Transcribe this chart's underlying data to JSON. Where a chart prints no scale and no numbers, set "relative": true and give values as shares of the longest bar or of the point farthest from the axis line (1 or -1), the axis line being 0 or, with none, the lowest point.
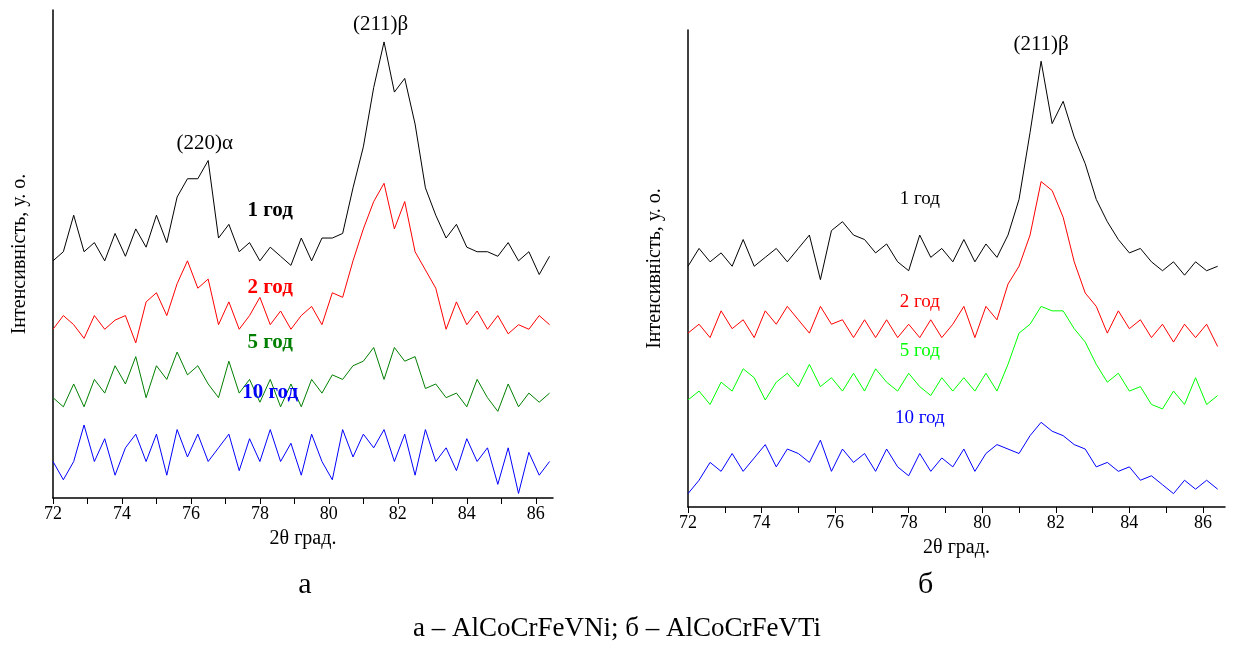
{
  "chart_data": [
    {
      "type": "line",
      "title": "а",
      "xlabel": "2θ град.",
      "ylabel": "Інтенсивність, у. о.",
      "relative": true,
      "marker": "none",
      "legend": false,
      "grid": false,
      "xlim": [
        72,
        86.5
      ],
      "xticks": [
        72,
        {
          "value": 73,
          "label": null
        },
        74,
        {
          "value": 75,
          "label": null
        },
        76,
        {
          "value": 77,
          "label": null
        },
        78,
        {
          "value": 79,
          "label": null
        },
        80,
        {
          "value": 81,
          "label": null
        },
        82,
        {
          "value": 83,
          "label": null
        },
        84,
        {
          "value": 85,
          "label": null
        },
        86
      ],
      "x": [
        72.0,
        72.3,
        72.6,
        72.9,
        73.2,
        73.5,
        73.8,
        74.1,
        74.4,
        74.7,
        75.0,
        75.3,
        75.6,
        75.9,
        76.2,
        76.5,
        76.8,
        77.1,
        77.4,
        77.7,
        78.0,
        78.3,
        78.6,
        78.9,
        79.2,
        79.5,
        79.8,
        80.1,
        80.4,
        80.7,
        81.0,
        81.3,
        81.6,
        81.9,
        82.2,
        82.5,
        82.8,
        83.1,
        83.4,
        83.7,
        84.0,
        84.3,
        84.6,
        84.9,
        85.2,
        85.5,
        85.8,
        86.1,
        86.4
      ],
      "series": [
        {
          "name": "1 год",
          "color": "#000000",
          "values": [
            0.52,
            0.54,
            0.62,
            0.54,
            0.56,
            0.52,
            0.58,
            0.53,
            0.59,
            0.55,
            0.62,
            0.56,
            0.66,
            0.7,
            0.7,
            0.74,
            0.57,
            0.6,
            0.54,
            0.56,
            0.52,
            0.55,
            0.53,
            0.51,
            0.57,
            0.52,
            0.57,
            0.57,
            0.58,
            0.68,
            0.77,
            0.9,
            1.0,
            0.89,
            0.92,
            0.82,
            0.68,
            0.62,
            0.57,
            0.6,
            0.55,
            0.54,
            0.54,
            0.53,
            0.56,
            0.52,
            0.54,
            0.49,
            0.53
          ]
        },
        {
          "name": "2 год",
          "color": "#ff0000",
          "values": [
            0.37,
            0.4,
            0.38,
            0.35,
            0.4,
            0.37,
            0.39,
            0.4,
            0.34,
            0.43,
            0.45,
            0.4,
            0.47,
            0.52,
            0.46,
            0.48,
            0.38,
            0.43,
            0.37,
            0.4,
            0.44,
            0.38,
            0.41,
            0.37,
            0.4,
            0.42,
            0.38,
            0.45,
            0.44,
            0.52,
            0.59,
            0.65,
            0.69,
            0.59,
            0.65,
            0.54,
            0.5,
            0.46,
            0.37,
            0.43,
            0.38,
            0.41,
            0.37,
            0.4,
            0.36,
            0.38,
            0.37,
            0.4,
            0.38
          ]
        },
        {
          "name": "5 год",
          "color": "#007f00",
          "values": [
            0.22,
            0.2,
            0.25,
            0.2,
            0.26,
            0.23,
            0.29,
            0.25,
            0.31,
            0.22,
            0.29,
            0.26,
            0.32,
            0.27,
            0.29,
            0.25,
            0.22,
            0.3,
            0.23,
            0.26,
            0.21,
            0.26,
            0.2,
            0.25,
            0.2,
            0.26,
            0.23,
            0.27,
            0.26,
            0.29,
            0.3,
            0.33,
            0.26,
            0.33,
            0.3,
            0.31,
            0.24,
            0.25,
            0.22,
            0.23,
            0.2,
            0.26,
            0.22,
            0.19,
            0.25,
            0.2,
            0.23,
            0.21,
            0.23
          ]
        },
        {
          "name": "10 год",
          "color": "#0000ff",
          "values": [
            0.08,
            0.04,
            0.08,
            0.16,
            0.08,
            0.13,
            0.05,
            0.11,
            0.14,
            0.08,
            0.14,
            0.05,
            0.15,
            0.09,
            0.14,
            0.08,
            0.11,
            0.14,
            0.06,
            0.13,
            0.08,
            0.15,
            0.08,
            0.12,
            0.05,
            0.14,
            0.08,
            0.04,
            0.15,
            0.09,
            0.14,
            0.11,
            0.15,
            0.08,
            0.14,
            0.05,
            0.15,
            0.08,
            0.11,
            0.06,
            0.13,
            0.08,
            0.11,
            0.03,
            0.11,
            0.01,
            0.1,
            0.05,
            0.08
          ]
        }
      ],
      "annotations": [
        {
          "text": "(220)α",
          "x": 76.4,
          "y": 0.74
        },
        {
          "text": "(211)β",
          "x": 81.5,
          "y": 1.0
        },
        "а – AlCoCrFeVNi; б – AlCoCrFeVTi"
      ]
    },
    {
      "type": "line",
      "title": "б",
      "xlabel": "2θ град.",
      "ylabel": "Інтенсивність, у. о.",
      "relative": true,
      "marker": "none",
      "legend": false,
      "grid": false,
      "xlim": [
        72,
        86.6
      ],
      "xticks": [
        72,
        {
          "value": 73,
          "label": null
        },
        74,
        {
          "value": 75,
          "label": null
        },
        76,
        {
          "value": 77,
          "label": null
        },
        78,
        {
          "value": 79,
          "label": null
        },
        80,
        {
          "value": 81,
          "label": null
        },
        82,
        {
          "value": 83,
          "label": null
        },
        84,
        {
          "value": 85,
          "label": null
        },
        86
      ],
      "x": [
        72.0,
        72.3,
        72.6,
        72.9,
        73.2,
        73.5,
        73.8,
        74.1,
        74.4,
        74.7,
        75.0,
        75.3,
        75.6,
        75.9,
        76.2,
        76.5,
        76.8,
        77.1,
        77.4,
        77.7,
        78.0,
        78.3,
        78.6,
        78.9,
        79.2,
        79.5,
        79.8,
        80.1,
        80.4,
        80.7,
        81.0,
        81.3,
        81.6,
        81.9,
        82.2,
        82.5,
        82.8,
        83.1,
        83.4,
        83.7,
        84.0,
        84.3,
        84.6,
        84.9,
        85.2,
        85.5,
        85.8,
        86.1,
        86.4
      ],
      "series": [
        {
          "name": "1 год",
          "color": "#000000",
          "values": [
            0.54,
            0.58,
            0.55,
            0.57,
            0.54,
            0.6,
            0.54,
            0.56,
            0.58,
            0.55,
            0.58,
            0.61,
            0.51,
            0.62,
            0.64,
            0.61,
            0.6,
            0.57,
            0.59,
            0.55,
            0.53,
            0.61,
            0.56,
            0.58,
            0.55,
            0.6,
            0.55,
            0.59,
            0.56,
            0.61,
            0.69,
            0.84,
            1.0,
            0.86,
            0.91,
            0.83,
            0.77,
            0.69,
            0.64,
            0.6,
            0.57,
            0.58,
            0.55,
            0.53,
            0.55,
            0.52,
            0.55,
            0.53,
            0.54
          ]
        },
        {
          "name": "2 год",
          "color": "#ff0000",
          "values": [
            0.39,
            0.41,
            0.38,
            0.44,
            0.4,
            0.42,
            0.38,
            0.44,
            0.41,
            0.45,
            0.42,
            0.39,
            0.45,
            0.41,
            0.42,
            0.38,
            0.42,
            0.38,
            0.42,
            0.38,
            0.41,
            0.38,
            0.42,
            0.38,
            0.41,
            0.45,
            0.38,
            0.45,
            0.42,
            0.5,
            0.54,
            0.61,
            0.73,
            0.71,
            0.65,
            0.55,
            0.48,
            0.45,
            0.39,
            0.44,
            0.4,
            0.42,
            0.38,
            0.41,
            0.37,
            0.41,
            0.38,
            0.41,
            0.36
          ]
        },
        {
          "name": "5 год",
          "color": "#00ff00",
          "values": [
            0.24,
            0.26,
            0.23,
            0.28,
            0.26,
            0.31,
            0.29,
            0.24,
            0.28,
            0.3,
            0.27,
            0.32,
            0.27,
            0.29,
            0.26,
            0.3,
            0.26,
            0.31,
            0.28,
            0.26,
            0.3,
            0.27,
            0.25,
            0.29,
            0.26,
            0.29,
            0.26,
            0.3,
            0.26,
            0.32,
            0.39,
            0.41,
            0.45,
            0.44,
            0.44,
            0.4,
            0.37,
            0.32,
            0.28,
            0.3,
            0.26,
            0.27,
            0.23,
            0.22,
            0.26,
            0.23,
            0.29,
            0.23,
            0.25
          ]
        },
        {
          "name": "10 год",
          "color": "#0000ff",
          "values": [
            0.03,
            0.06,
            0.1,
            0.08,
            0.12,
            0.08,
            0.11,
            0.14,
            0.09,
            0.13,
            0.12,
            0.1,
            0.15,
            0.08,
            0.13,
            0.1,
            0.12,
            0.08,
            0.13,
            0.09,
            0.07,
            0.12,
            0.08,
            0.11,
            0.09,
            0.13,
            0.08,
            0.12,
            0.14,
            0.13,
            0.12,
            0.16,
            0.19,
            0.17,
            0.16,
            0.14,
            0.13,
            0.09,
            0.1,
            0.08,
            0.09,
            0.06,
            0.07,
            0.05,
            0.03,
            0.06,
            0.04,
            0.06,
            0.04
          ]
        }
      ],
      "annotations": [
        {
          "text": "(211)β",
          "x": 81.6,
          "y": 1.0
        }
      ]
    }
  ]
}
